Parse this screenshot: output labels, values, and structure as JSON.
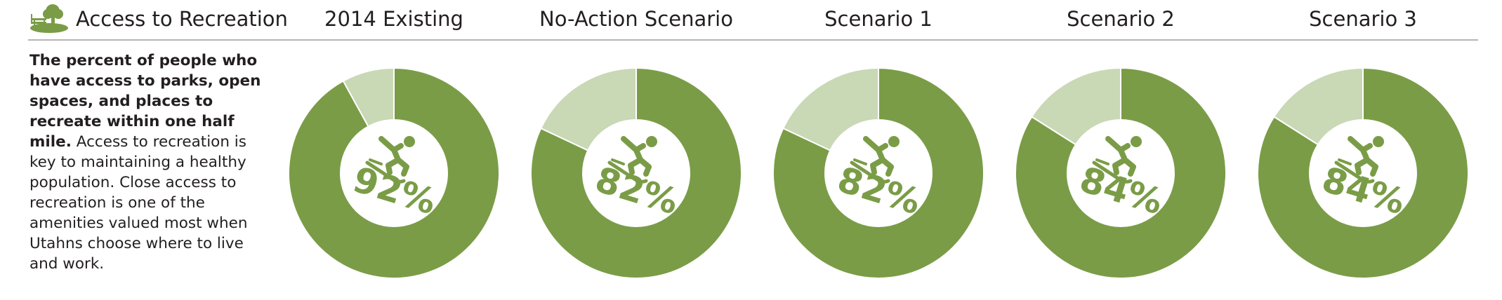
{
  "header": {
    "title": "Access to Recreation",
    "icon": "tree-bench-icon"
  },
  "description": {
    "bold": "The percent of people who have access to parks, open spaces, and places to recreate within one half mile.",
    "text": " Access to recreation is key to maintaining a healthy population. Close access to recreation is one of the amenities valued most when Utahns choose where to live and work."
  },
  "colors": {
    "primary": "#7a9c47",
    "remainder": "#c9d8b5",
    "rule": "#b5b5b5",
    "text": "#231f20"
  },
  "chart_data": {
    "type": "pie",
    "variant": "donut",
    "center_icon": "skier-icon",
    "categories": [
      "2014 Existing",
      "No-Action Scenario",
      "Scenario 1",
      "Scenario 2",
      "Scenario 3"
    ],
    "values": [
      92,
      82,
      82,
      84,
      84
    ],
    "value_labels": [
      "92%",
      "82%",
      "82%",
      "84%",
      "84%"
    ],
    "unit": "%"
  }
}
